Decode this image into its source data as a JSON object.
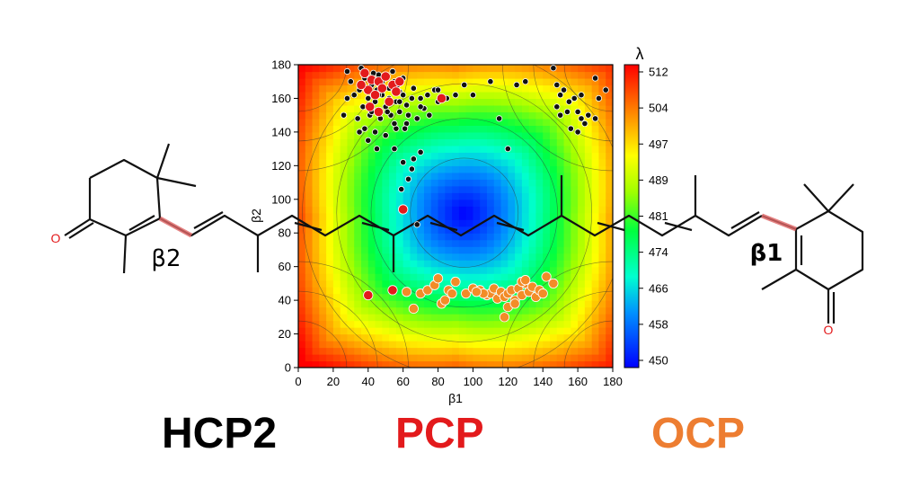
{
  "chart_data": {
    "type": "heatmap",
    "title": "",
    "xlabel": "β1",
    "ylabel": "β2",
    "xlim": [
      0,
      180
    ],
    "ylim": [
      0,
      180
    ],
    "x_ticks": [
      "0",
      "20",
      "40",
      "60",
      "80",
      "100",
      "120",
      "140",
      "160",
      "180"
    ],
    "y_ticks": [
      "0",
      "20",
      "40",
      "60",
      "80",
      "100",
      "120",
      "140",
      "160",
      "180"
    ],
    "colorbar": {
      "label": "λ",
      "range": [
        450,
        512
      ],
      "ticks": [
        "512",
        "504",
        "497",
        "489",
        "481",
        "474",
        "466",
        "458",
        "450"
      ],
      "colors": [
        "#0000ff",
        "#00c8ff",
        "#00ff80",
        "#80ff00",
        "#ffff00",
        "#ff8000",
        "#ff0000"
      ]
    },
    "surface": {
      "minimum": {
        "b1": 95,
        "b2": 92,
        "value": 450
      },
      "maxima": [
        {
          "b1": 0,
          "b2": 180,
          "value": 512
        },
        {
          "b1": 180,
          "b2": 180,
          "value": 512
        },
        {
          "b1": 0,
          "b2": 0,
          "value": 512
        },
        {
          "b1": 180,
          "b2": 0,
          "value": 512
        }
      ]
    },
    "series": [
      {
        "name": "HCP2",
        "color": "#111111",
        "points": [
          [
            38,
            172
          ],
          [
            42,
            168
          ],
          [
            45,
            165
          ],
          [
            48,
            162
          ],
          [
            52,
            166
          ],
          [
            55,
            170
          ],
          [
            58,
            164
          ],
          [
            40,
            160
          ],
          [
            44,
            158
          ],
          [
            50,
            155
          ],
          [
            56,
            158
          ],
          [
            60,
            162
          ],
          [
            35,
            165
          ],
          [
            37,
            155
          ],
          [
            41,
            150
          ],
          [
            47,
            148
          ],
          [
            53,
            150
          ],
          [
            58,
            152
          ],
          [
            62,
            156
          ],
          [
            65,
            160
          ],
          [
            32,
            162
          ],
          [
            30,
            170
          ],
          [
            28,
            176
          ],
          [
            36,
            178
          ],
          [
            46,
            174
          ],
          [
            54,
            176
          ],
          [
            60,
            172
          ],
          [
            66,
            166
          ],
          [
            70,
            160
          ],
          [
            72,
            154
          ],
          [
            34,
            148
          ],
          [
            38,
            142
          ],
          [
            44,
            140
          ],
          [
            50,
            138
          ],
          [
            56,
            142
          ],
          [
            62,
            145
          ],
          [
            68,
            148
          ],
          [
            75,
            150
          ],
          [
            80,
            158
          ],
          [
            85,
            160
          ],
          [
            90,
            162
          ],
          [
            95,
            168
          ],
          [
            100,
            162
          ],
          [
            110,
            170
          ],
          [
            115,
            148
          ],
          [
            40,
            135
          ],
          [
            45,
            130
          ],
          [
            55,
            130
          ],
          [
            60,
            122
          ],
          [
            65,
            118
          ],
          [
            70,
            128
          ],
          [
            120,
            130
          ],
          [
            66,
            124
          ],
          [
            28,
            160
          ],
          [
            26,
            150
          ],
          [
            48,
            170
          ],
          [
            52,
            160
          ],
          [
            57,
            168
          ],
          [
            43,
            175
          ],
          [
            63,
            150
          ],
          [
            74,
            162
          ],
          [
            78,
            165
          ],
          [
            146,
            178
          ],
          [
            148,
            168
          ],
          [
            150,
            162
          ],
          [
            155,
            158
          ],
          [
            152,
            165
          ],
          [
            158,
            160
          ],
          [
            160,
            152
          ],
          [
            162,
            148
          ],
          [
            164,
            145
          ],
          [
            166,
            150
          ],
          [
            170,
            148
          ],
          [
            160,
            140
          ],
          [
            156,
            142
          ],
          [
            154,
            152
          ],
          [
            148,
            155
          ],
          [
            150,
            150
          ],
          [
            170,
            172
          ],
          [
            176,
            165
          ],
          [
            172,
            160
          ],
          [
            162,
            162
          ],
          [
            130,
            170
          ],
          [
            125,
            168
          ],
          [
            80,
            165
          ],
          [
            70,
            155
          ],
          [
            35,
            140
          ],
          [
            42,
            152
          ],
          [
            46,
            162
          ],
          [
            51,
            152
          ],
          [
            61,
            142
          ],
          [
            58,
            158
          ],
          [
            55,
            145
          ],
          [
            63,
            112
          ],
          [
            59,
            106
          ],
          [
            68,
            85
          ]
        ]
      },
      {
        "name": "PCP",
        "color": "#e31a1c",
        "points": [
          [
            38,
            175
          ],
          [
            42,
            171
          ],
          [
            46,
            170
          ],
          [
            50,
            173
          ],
          [
            54,
            168
          ],
          [
            40,
            165
          ],
          [
            44,
            162
          ],
          [
            48,
            166
          ],
          [
            52,
            158
          ],
          [
            56,
            164
          ],
          [
            41,
            155
          ],
          [
            46,
            152
          ],
          [
            36,
            168
          ],
          [
            58,
            170
          ],
          [
            82,
            160
          ],
          [
            60,
            94
          ],
          [
            40,
            43
          ],
          [
            54,
            46
          ]
        ]
      },
      {
        "name": "OCP",
        "color": "#f28c28",
        "points": [
          [
            62,
            45
          ],
          [
            66,
            35
          ],
          [
            70,
            44
          ],
          [
            74,
            46
          ],
          [
            78,
            49
          ],
          [
            80,
            53
          ],
          [
            82,
            38
          ],
          [
            86,
            46
          ],
          [
            90,
            51
          ],
          [
            96,
            44
          ],
          [
            100,
            47
          ],
          [
            104,
            46
          ],
          [
            108,
            43
          ],
          [
            110,
            44
          ],
          [
            112,
            47
          ],
          [
            114,
            41
          ],
          [
            116,
            45
          ],
          [
            118,
            42
          ],
          [
            120,
            44
          ],
          [
            122,
            46
          ],
          [
            124,
            40
          ],
          [
            126,
            47
          ],
          [
            128,
            43
          ],
          [
            130,
            50
          ],
          [
            132,
            45
          ],
          [
            134,
            48
          ],
          [
            136,
            42
          ],
          [
            138,
            46
          ],
          [
            140,
            44
          ],
          [
            118,
            30
          ],
          [
            120,
            36
          ],
          [
            124,
            38
          ],
          [
            128,
            51
          ],
          [
            130,
            52
          ],
          [
            142,
            54
          ],
          [
            146,
            50
          ],
          [
            106,
            44
          ],
          [
            102,
            45
          ],
          [
            88,
            44
          ],
          [
            84,
            40
          ]
        ]
      }
    ],
    "molecule": {
      "left_oxygen": "O",
      "right_oxygen": "O",
      "left_angle": "β2",
      "right_angle": "β1"
    },
    "bottom_labels": {
      "hcp2": "HCP2",
      "pcp": "PCP",
      "ocp": "OCP"
    },
    "label_colors": {
      "pcp": "#e31a1c",
      "ocp": "#ed7d31",
      "bond_highlight": "#e06666",
      "oxygen": "#e31a1c"
    }
  }
}
